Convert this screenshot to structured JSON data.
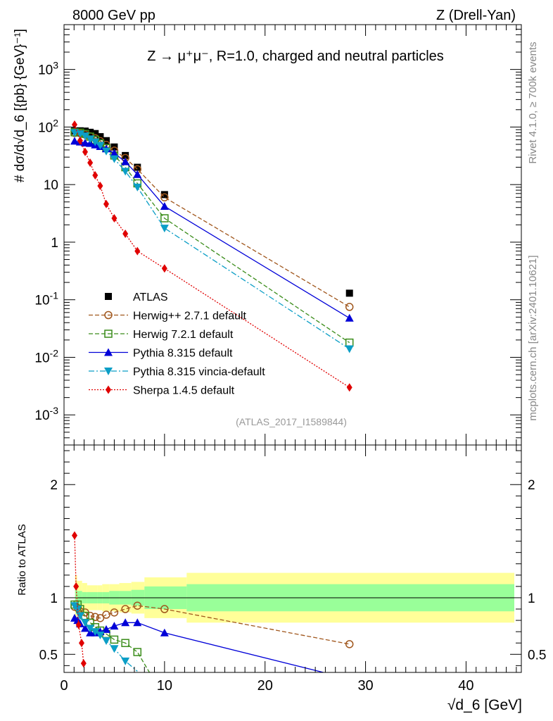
{
  "header": {
    "left": "8000 GeV pp",
    "right": "Z (Drell-Yan)"
  },
  "side_labels": {
    "rivet": "Rivet 4.1.0, ≥ 700k events",
    "mcplots": "mcplots.cern.ch [arXiv:2401.10621]"
  },
  "chart_data": [
    {
      "type": "line",
      "title": "Z → μ⁺μ⁻, R=1.0, charged and neutral particles",
      "watermark": "(ATLAS_2017_I1589844)",
      "ylabel": "# dσ/d√d_6 [{pb} {GeV}⁻¹]",
      "yscale": "log",
      "ylim": [
        0.0003,
        6000
      ],
      "xlim": [
        0,
        45.5
      ],
      "y_tick_labels": [
        "10^-3",
        "10^-2",
        "10^-1",
        "1",
        "10",
        "10^2",
        "10^3"
      ],
      "series": [
        {
          "name": "ATLAS",
          "color": "#000000",
          "marker": "square",
          "dash": "",
          "x": [
            1.05,
            1.6,
            2.1,
            2.6,
            3.1,
            3.6,
            4.2,
            5.0,
            6.1,
            7.3,
            10.0,
            28.4
          ],
          "y": [
            85,
            86,
            85,
            81,
            77,
            68,
            58,
            45,
            32,
            20,
            6.7,
            0.13
          ]
        },
        {
          "name": "Herwig++ 2.7.1 default",
          "color": "#a0561c",
          "marker": "circle-open",
          "dash": "6,3",
          "x": [
            1.05,
            1.6,
            2.1,
            2.6,
            3.1,
            3.6,
            4.2,
            5.0,
            6.1,
            7.3,
            10.0,
            28.4
          ],
          "y": [
            79,
            78,
            74,
            69,
            64,
            57,
            49,
            39,
            29,
            18.5,
            6.0,
            0.075
          ]
        },
        {
          "name": "Herwig 7.2.1 default",
          "color": "#3a8c1a",
          "marker": "square-open",
          "dash": "6,3",
          "x": [
            1.05,
            1.6,
            2.1,
            2.6,
            3.1,
            3.6,
            4.2,
            5.0,
            6.1,
            7.3,
            10.0,
            28.4
          ],
          "y": [
            81,
            80,
            76,
            68,
            60,
            52,
            43,
            32,
            20,
            10.5,
            2.6,
            0.018
          ]
        },
        {
          "name": "Pythia 8.315 default",
          "color": "#0000d8",
          "marker": "triangle-up",
          "dash": "",
          "x": [
            1.05,
            1.6,
            2.1,
            2.6,
            3.1,
            3.6,
            4.2,
            5.0,
            6.1,
            7.3,
            10.0,
            28.4
          ],
          "y": [
            57,
            55,
            53,
            52,
            49,
            46,
            42,
            35,
            25,
            15,
            4.2,
            0.048
          ]
        },
        {
          "name": "Pythia 8.315 vincia-default",
          "color": "#0b9ec6",
          "marker": "triangle-down",
          "dash": "8,3,2,3",
          "x": [
            1.05,
            1.6,
            2.1,
            2.6,
            3.1,
            3.6,
            4.2,
            5.0,
            6.1,
            7.3,
            10.0,
            28.4
          ],
          "y": [
            80,
            76,
            70,
            62,
            55,
            48,
            38,
            28,
            17,
            9,
            1.75,
            0.014
          ]
        },
        {
          "name": "Sherpa 1.4.5 default",
          "color": "#e00000",
          "marker": "diamond",
          "dash": "2,2",
          "x": [
            1.05,
            1.6,
            2.1,
            2.6,
            3.1,
            3.6,
            4.2,
            5.0,
            6.1,
            7.3,
            10.0,
            28.4
          ],
          "y": [
            110,
            58,
            37,
            24,
            14.5,
            9.5,
            4.6,
            2.6,
            1.4,
            0.7,
            0.35,
            0.003
          ]
        }
      ]
    },
    {
      "type": "line",
      "ylabel": "Ratio to ATLAS",
      "xlabel": "√d_6 [GeV]",
      "ylim": [
        0.34,
        2.35
      ],
      "xlim": [
        0,
        45.5
      ],
      "x_tick_labels": [
        "0",
        "10",
        "20",
        "30",
        "40"
      ],
      "y_tick_labels": [
        "0.5",
        "1",
        "2"
      ],
      "bands": {
        "edges": [
          1.1,
          1.3,
          1.8,
          2.3,
          2.8,
          3.3,
          3.8,
          4.5,
          5.5,
          6.7,
          8.0,
          12.2,
          44.8
        ],
        "inner": [
          0.1,
          0.06,
          0.05,
          0.05,
          0.05,
          0.05,
          0.05,
          0.06,
          0.06,
          0.07,
          0.1,
          0.12
        ],
        "outer": [
          0.2,
          0.15,
          0.13,
          0.11,
          0.11,
          0.11,
          0.12,
          0.12,
          0.13,
          0.14,
          0.18,
          0.22
        ]
      },
      "series": [
        {
          "name": "Herwig++ 2.7.1 default",
          "color": "#a0561c",
          "marker": "circle-open",
          "dash": "6,3",
          "x": [
            1.05,
            1.35,
            1.6,
            2.1,
            2.6,
            3.1,
            3.6,
            4.2,
            5.0,
            6.1,
            7.3,
            10.0,
            28.4
          ],
          "y": [
            0.92,
            0.91,
            0.88,
            0.87,
            0.84,
            0.83,
            0.82,
            0.85,
            0.87,
            0.9,
            0.93,
            0.9,
            0.59
          ]
        },
        {
          "name": "Herwig 7.2.1 default",
          "color": "#3a8c1a",
          "marker": "square-open",
          "dash": "6,3",
          "x": [
            1.05,
            1.35,
            1.6,
            2.1,
            2.6,
            3.1,
            3.6,
            4.2,
            5.0,
            6.1,
            7.3,
            8.5
          ],
          "y": [
            0.94,
            0.94,
            0.9,
            0.84,
            0.78,
            0.74,
            0.71,
            0.68,
            0.63,
            0.6,
            0.52,
            0.34
          ]
        },
        {
          "name": "Pythia 8.315 default",
          "color": "#0000d8",
          "marker": "triangle-up",
          "dash": "",
          "x": [
            1.05,
            1.35,
            1.6,
            2.1,
            2.6,
            3.1,
            3.6,
            4.2,
            5.0,
            6.1,
            7.3,
            10.0,
            25.8
          ],
          "y": [
            0.82,
            0.8,
            0.77,
            0.73,
            0.69,
            0.69,
            0.7,
            0.72,
            0.75,
            0.78,
            0.78,
            0.69,
            0.34
          ]
        },
        {
          "name": "Pythia 8.315 vincia-default",
          "color": "#0b9ec6",
          "marker": "triangle-down",
          "dash": "8,3,2,3",
          "x": [
            1.05,
            1.35,
            1.6,
            2.1,
            2.6,
            3.1,
            3.6,
            4.2,
            5.0,
            6.1,
            7.3
          ],
          "y": [
            0.93,
            0.9,
            0.84,
            0.78,
            0.73,
            0.7,
            0.67,
            0.62,
            0.55,
            0.44,
            0.35
          ]
        },
        {
          "name": "Sherpa 1.4.5 default",
          "color": "#e00000",
          "marker": "diamond",
          "dash": "2,2",
          "x": [
            1.05,
            1.2,
            1.45,
            1.75,
            1.95
          ],
          "y": [
            1.55,
            1.1,
            0.76,
            0.6,
            0.42
          ]
        }
      ]
    }
  ]
}
